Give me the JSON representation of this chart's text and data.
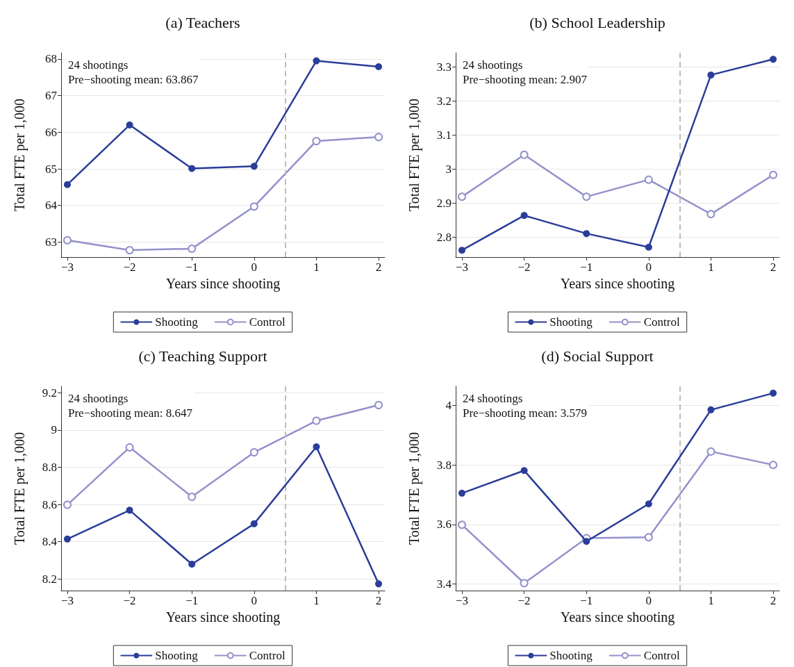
{
  "chart_data": [
    {
      "type": "line",
      "title": "(a) Teachers",
      "xlabel": "Years since shooting",
      "ylabel": "Total FTE per 1,000",
      "annotations": [
        "24 shootings",
        "Pre−shooting mean: 63.867"
      ],
      "x": [
        -3,
        -2,
        -1,
        0,
        1,
        2
      ],
      "xlim": [
        -3.1,
        2.1
      ],
      "xticks": [
        {
          "value": -3,
          "label": "−3"
        },
        {
          "value": -2,
          "label": "−2"
        },
        {
          "value": -1,
          "label": "−1"
        },
        0,
        1,
        2
      ],
      "ylim": [
        62.59,
        68.17
      ],
      "yticks": [
        63,
        64,
        65,
        66,
        67,
        68
      ],
      "grid": "y",
      "legend": "bottom",
      "marker": "circle",
      "line_style": "solid",
      "series": [
        {
          "name": "Shooting",
          "color": "#2a3d99",
          "values": [
            64.57,
            66.2,
            65.01,
            65.07,
            67.95,
            67.79
          ]
        },
        {
          "name": "Control",
          "color": "#9391cb",
          "values": [
            63.05,
            62.78,
            62.82,
            63.97,
            65.76,
            65.87
          ]
        }
      ],
      "ref_lines": [
        {
          "axis": "x",
          "value": 0.5,
          "color": "#bdbdbd",
          "line_style": "dashed"
        }
      ]
    },
    {
      "type": "line",
      "title": "(b) School Leadership",
      "xlabel": "Years since shooting",
      "ylabel": "Total FTE per 1,000",
      "annotations": [
        "24 shootings",
        "Pre−shooting mean: 2.907"
      ],
      "x": [
        -3,
        -2,
        -1,
        0,
        1,
        2
      ],
      "xlim": [
        -3.1,
        2.1
      ],
      "xticks": [
        {
          "value": -3,
          "label": "−3"
        },
        {
          "value": -2,
          "label": "−2"
        },
        {
          "value": -1,
          "label": "−1"
        },
        0,
        1,
        2
      ],
      "ylim": [
        2.742,
        3.341
      ],
      "yticks": [
        2.8,
        2.9,
        3,
        3.1,
        3.2,
        3.3
      ],
      "grid": "y",
      "legend": "bottom",
      "marker": "circle",
      "line_style": "solid",
      "series": [
        {
          "name": "Shooting",
          "color": "#2a3d99",
          "values": [
            2.762,
            2.864,
            2.811,
            2.771,
            3.276,
            3.322
          ]
        },
        {
          "name": "Control",
          "color": "#9391cb",
          "values": [
            2.919,
            3.042,
            2.919,
            2.969,
            2.868,
            2.983
          ]
        }
      ],
      "ref_lines": [
        {
          "axis": "x",
          "value": 0.5,
          "color": "#bdbdbd",
          "line_style": "dashed"
        }
      ]
    },
    {
      "type": "line",
      "title": "(c) Teaching Support",
      "xlabel": "Years since shooting",
      "ylabel": "Total FTE per 1,000",
      "annotations": [
        "24 shootings",
        "Pre−shooting mean: 8.647"
      ],
      "x": [
        -3,
        -2,
        -1,
        0,
        1,
        2
      ],
      "xlim": [
        -3.1,
        2.1
      ],
      "xticks": [
        {
          "value": -3,
          "label": "−3"
        },
        {
          "value": -2,
          "label": "−2"
        },
        {
          "value": -1,
          "label": "−1"
        },
        0,
        1,
        2
      ],
      "ylim": [
        8.137,
        9.235
      ],
      "yticks": [
        8.2,
        8.4,
        8.6,
        8.8,
        9,
        9.2
      ],
      "grid": "y",
      "legend": "bottom",
      "marker": "circle",
      "line_style": "solid",
      "series": [
        {
          "name": "Shooting",
          "color": "#2a3d99",
          "values": [
            8.414,
            8.569,
            8.279,
            8.496,
            8.91,
            8.173
          ]
        },
        {
          "name": "Control",
          "color": "#9391cb",
          "values": [
            8.598,
            8.907,
            8.641,
            8.88,
            9.05,
            9.134
          ]
        }
      ],
      "ref_lines": [
        {
          "axis": "x",
          "value": 0.5,
          "color": "#bdbdbd",
          "line_style": "dashed"
        }
      ]
    },
    {
      "type": "line",
      "title": "(d) Social Support",
      "xlabel": "Years since shooting",
      "ylabel": "Total FTE per 1,000",
      "annotations": [
        "24 shootings",
        "Pre−shooting mean: 3.579"
      ],
      "x": [
        -3,
        -2,
        -1,
        0,
        1,
        2
      ],
      "xlim": [
        -3.1,
        2.1
      ],
      "xticks": [
        {
          "value": -3,
          "label": "−3"
        },
        {
          "value": -2,
          "label": "−2"
        },
        {
          "value": -1,
          "label": "−1"
        },
        0,
        1,
        2
      ],
      "ylim": [
        3.378,
        4.064
      ],
      "yticks": [
        3.4,
        3.6,
        3.8,
        4
      ],
      "grid": "y",
      "legend": "bottom",
      "marker": "circle",
      "line_style": "solid",
      "series": [
        {
          "name": "Shooting",
          "color": "#2a3d99",
          "values": [
            3.705,
            3.781,
            3.543,
            3.669,
            3.985,
            4.041
          ]
        },
        {
          "name": "Control",
          "color": "#9391cb",
          "values": [
            3.599,
            3.403,
            3.554,
            3.557,
            3.845,
            3.8
          ]
        }
      ],
      "ref_lines": [
        {
          "axis": "x",
          "value": 0.5,
          "color": "#bdbdbd",
          "line_style": "dashed"
        }
      ]
    }
  ]
}
